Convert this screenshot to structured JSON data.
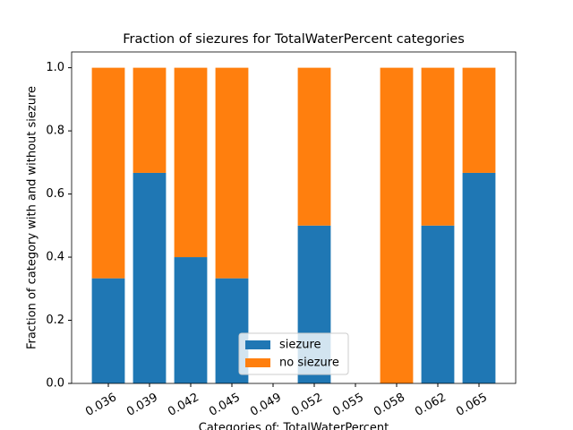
{
  "chart_data": {
    "type": "stacked_bar",
    "title": "Fraction of siezures for TotalWaterPercent categories",
    "x_label": "Categories of: TotalWaterPercent",
    "y_label": "Fraction of category with and without siezure",
    "categories": [
      "0.036",
      "0.039",
      "0.042",
      "0.045",
      "0.049",
      "0.052",
      "0.055",
      "0.058",
      "0.062",
      "0.065"
    ],
    "series": [
      {
        "name": "siezure",
        "color": "#1f77b4",
        "values": [
          0.333,
          0.667,
          0.4,
          0.333,
          null,
          0.5,
          null,
          0,
          0.5,
          0.667
        ]
      },
      {
        "name": "no siezure",
        "color": "#ff7f0e",
        "values": [
          0.667,
          0.333,
          0.6,
          0.667,
          null,
          0.5,
          null,
          1.0,
          0.5,
          0.333
        ]
      }
    ],
    "ylim": [
      0,
      1.05
    ],
    "yticks": [
      {
        "value": 0,
        "label": "0.0"
      },
      0.2,
      0.4,
      0.6,
      0.8,
      {
        "value": 1,
        "label": "1.0"
      }
    ],
    "legend": "lower center"
  }
}
